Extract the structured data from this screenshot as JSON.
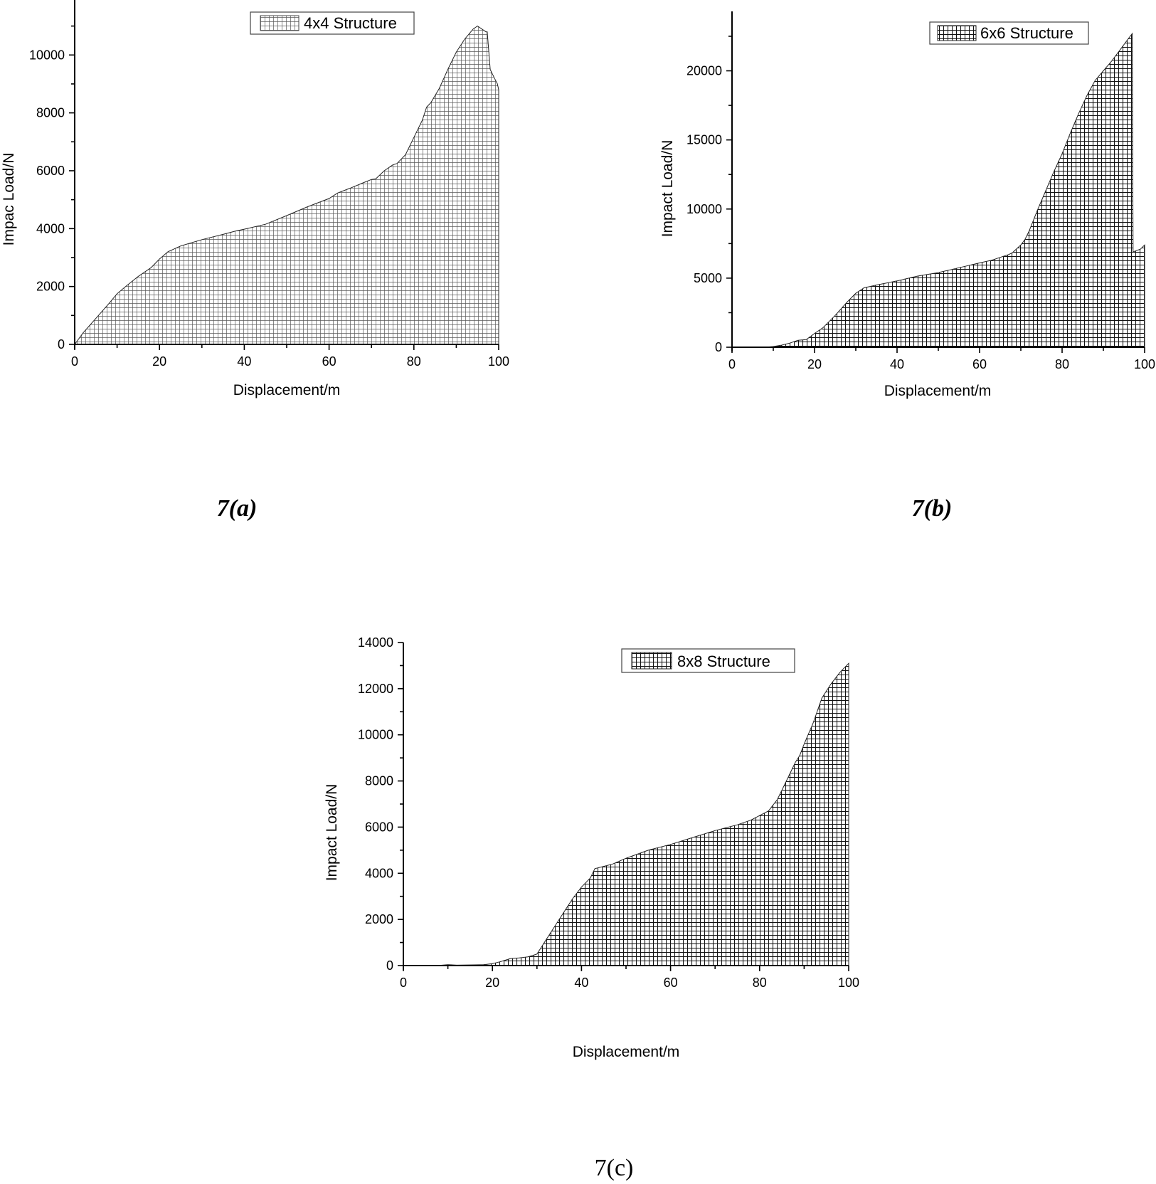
{
  "chart_data": [
    {
      "id": "a",
      "type": "area",
      "caption": "7(a)",
      "caption_style": "bold-italic",
      "legend": "4x4 Structure",
      "pattern": "light-grid",
      "xlabel": "Displacement/m",
      "ylabel": "Impac Load/N",
      "xlim": [
        0,
        100
      ],
      "ylim": [
        0,
        11900
      ],
      "xticks": [
        0,
        20,
        40,
        60,
        80,
        100
      ],
      "yticks": [
        0,
        2000,
        4000,
        6000,
        8000,
        10000
      ],
      "grid": false,
      "legend_position": "top-center",
      "series": [
        {
          "name": "4x4 Structure",
          "x": [
            0,
            2,
            5,
            8,
            10,
            12,
            15,
            18,
            20,
            22,
            25,
            30,
            35,
            38,
            40,
            45,
            50,
            55,
            60,
            62,
            65,
            68,
            70,
            71,
            73,
            75,
            76,
            78,
            80,
            82,
            83,
            84,
            86,
            88,
            90,
            92,
            94,
            95,
            97,
            97.3,
            98,
            99,
            99.7,
            100
          ],
          "y": [
            0,
            400,
            900,
            1400,
            1750,
            2000,
            2350,
            2650,
            2950,
            3200,
            3400,
            3620,
            3800,
            3920,
            3980,
            4150,
            4450,
            4760,
            5040,
            5230,
            5400,
            5580,
            5700,
            5720,
            6000,
            6200,
            6250,
            6550,
            7150,
            7750,
            8200,
            8350,
            8850,
            9500,
            10100,
            10550,
            10900,
            11000,
            10800,
            10800,
            9500,
            9200,
            9000,
            8800
          ]
        }
      ]
    },
    {
      "id": "b",
      "type": "area",
      "caption": "7(b)",
      "caption_style": "bold-italic",
      "legend": "6x6 Structure",
      "pattern": "dark-grid",
      "xlabel": "Displacement/m",
      "ylabel": "Impact Load/N",
      "xlim": [
        0,
        100
      ],
      "ylim": [
        0,
        24300
      ],
      "xticks": [
        0,
        20,
        40,
        60,
        80,
        100
      ],
      "yticks": [
        0,
        5000,
        10000,
        15000,
        20000
      ],
      "grid": false,
      "legend_position": "top-right",
      "series": [
        {
          "name": "6x6 Structure",
          "x": [
            0,
            8,
            10,
            12,
            14,
            16,
            18,
            20,
            22,
            25,
            28,
            30,
            32,
            35,
            40,
            45,
            50,
            55,
            60,
            63,
            65,
            67,
            68,
            70,
            71,
            72,
            74,
            76,
            78,
            80,
            82,
            84,
            86,
            88,
            90,
            92,
            94,
            96,
            97,
            97.2,
            99,
            100
          ],
          "y": [
            0,
            0,
            50,
            150,
            300,
            500,
            550,
            1000,
            1400,
            2300,
            3300,
            3900,
            4300,
            4500,
            4800,
            5150,
            5400,
            5750,
            6100,
            6300,
            6500,
            6700,
            6850,
            7400,
            7800,
            8400,
            9900,
            11300,
            12700,
            14000,
            15500,
            16900,
            18200,
            19300,
            20000,
            20700,
            21500,
            22300,
            22700,
            6900,
            7100,
            7400
          ]
        }
      ]
    },
    {
      "id": "c",
      "type": "area",
      "caption": "7(c)",
      "caption_style": "regular",
      "legend": "8x8 Structure",
      "pattern": "dark-grid",
      "xlabel": "Displacement/m",
      "ylabel": "Impact Load/N",
      "xlim": [
        0,
        100
      ],
      "ylim": [
        0,
        14000
      ],
      "xticks": [
        0,
        20,
        40,
        60,
        80,
        100
      ],
      "yticks": [
        0,
        2000,
        4000,
        6000,
        8000,
        10000,
        12000,
        14000
      ],
      "grid": false,
      "legend_position": "top-center",
      "series": [
        {
          "name": "8x8 Structure",
          "x": [
            0,
            8,
            10,
            12,
            16,
            18,
            20,
            22,
            24,
            26,
            28,
            30,
            32,
            34,
            36,
            38,
            40,
            42,
            43,
            45,
            47,
            50,
            55,
            60,
            65,
            70,
            75,
            78,
            80,
            82,
            84,
            86,
            88,
            89,
            90,
            92,
            94,
            96,
            98,
            99,
            100
          ],
          "y": [
            0,
            10,
            40,
            20,
            30,
            40,
            80,
            180,
            300,
            330,
            380,
            500,
            1100,
            1700,
            2300,
            2900,
            3400,
            3800,
            4200,
            4300,
            4400,
            4650,
            5000,
            5250,
            5550,
            5850,
            6100,
            6300,
            6500,
            6700,
            7200,
            8000,
            8800,
            9100,
            9600,
            10500,
            11600,
            12200,
            12700,
            12900,
            13100
          ]
        }
      ]
    }
  ]
}
